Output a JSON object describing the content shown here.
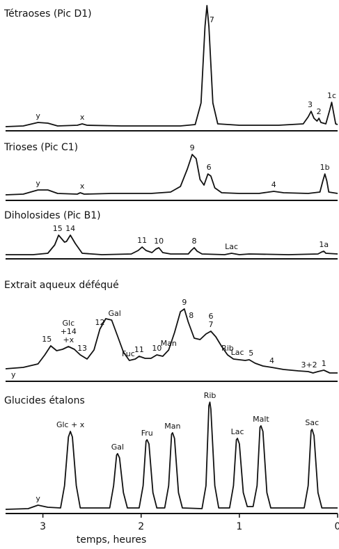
{
  "chart_data": [
    {
      "type": "line",
      "title": "Tétraoses (Pic D1)",
      "xlim": [
        3.38,
        0
      ],
      "ylim": [
        0,
        182
      ],
      "x": [
        3.38,
        3.2,
        3.05,
        2.95,
        2.85,
        2.65,
        2.6,
        2.55,
        2.2,
        1.6,
        1.45,
        1.39,
        1.35,
        1.33,
        1.31,
        1.27,
        1.22,
        1.0,
        0.6,
        0.35,
        0.3,
        0.27,
        0.24,
        0.21,
        0.19,
        0.17,
        0.12,
        0.08,
        0.06,
        0.04,
        0.02,
        0
      ],
      "values": [
        6,
        7,
        12,
        11,
        7,
        8,
        10,
        8,
        7,
        7,
        9,
        40,
        150,
        180,
        150,
        40,
        10,
        8,
        8,
        10,
        20,
        28,
        18,
        14,
        18,
        12,
        10,
        30,
        41,
        25,
        10,
        9
      ],
      "color": "#111111",
      "annotations": [
        {
          "text": "y",
          "x": 3.05
        },
        {
          "text": "x",
          "x": 2.6
        },
        {
          "text": "7",
          "x": 1.28
        },
        {
          "text": "3",
          "x": 0.28
        },
        {
          "text": "2",
          "x": 0.19
        },
        {
          "text": "1c",
          "x": 0.06
        }
      ]
    },
    {
      "type": "line",
      "title": "Trioses (Pic C1)",
      "xlim": [
        3.38,
        0
      ],
      "ylim": [
        0,
        80
      ],
      "x": [
        3.38,
        3.2,
        3.05,
        2.95,
        2.85,
        2.65,
        2.62,
        2.58,
        2.3,
        1.9,
        1.7,
        1.6,
        1.53,
        1.48,
        1.44,
        1.4,
        1.36,
        1.32,
        1.29,
        1.25,
        1.18,
        1.0,
        0.8,
        0.7,
        0.65,
        0.55,
        0.3,
        0.18,
        0.15,
        0.13,
        0.11,
        0.09,
        0
      ],
      "values": [
        8,
        9,
        15,
        15,
        10,
        9,
        11,
        9,
        10,
        10,
        12,
        20,
        45,
        66,
        60,
        30,
        22,
        38,
        35,
        18,
        11,
        10,
        10,
        12,
        13,
        11,
        10,
        12,
        28,
        38,
        28,
        12,
        10
      ],
      "color": "#111111",
      "annotations": [
        {
          "text": "y",
          "x": 3.05
        },
        {
          "text": "x",
          "x": 2.6
        },
        {
          "text": "9",
          "x": 1.48
        },
        {
          "text": "6",
          "x": 1.31
        },
        {
          "text": "4",
          "x": 0.65
        },
        {
          "text": "1b",
          "x": 0.13
        }
      ]
    },
    {
      "type": "line",
      "title": "Diholosides (Pic B1)",
      "xlim": [
        3.38,
        0
      ],
      "ylim": [
        0,
        60
      ],
      "x": [
        3.38,
        3.1,
        2.95,
        2.88,
        2.84,
        2.78,
        2.76,
        2.72,
        2.67,
        2.6,
        2.4,
        2.1,
        2.03,
        1.99,
        1.95,
        1.89,
        1.85,
        1.82,
        1.78,
        1.7,
        1.52,
        1.49,
        1.46,
        1.43,
        1.38,
        1.15,
        1.08,
        1.0,
        0.9,
        0.5,
        0.2,
        0.16,
        0.14,
        0.12,
        0
      ],
      "values": [
        6,
        6,
        8,
        20,
        34,
        24,
        25,
        34,
        22,
        8,
        6,
        7,
        12,
        17,
        12,
        9,
        14,
        16,
        9,
        7,
        7,
        12,
        16,
        11,
        7,
        6,
        8,
        6,
        7,
        6,
        7,
        10,
        11,
        8,
        7
      ],
      "color": "#111111",
      "annotations": [
        {
          "text": "15",
          "x": 2.85
        },
        {
          "text": "14",
          "x": 2.72
        },
        {
          "text": "11",
          "x": 1.99
        },
        {
          "text": "10",
          "x": 1.82
        },
        {
          "text": "8",
          "x": 1.46
        },
        {
          "text": "Lac",
          "x": 1.08
        },
        {
          "text": "1a",
          "x": 0.14
        }
      ]
    },
    {
      "type": "line",
      "title": "Extrait aqueux déféqué",
      "xlim": [
        3.38,
        0
      ],
      "ylim": [
        0,
        130
      ],
      "x": [
        3.38,
        3.2,
        3.05,
        2.98,
        2.92,
        2.86,
        2.8,
        2.74,
        2.68,
        2.62,
        2.55,
        2.48,
        2.42,
        2.36,
        2.3,
        2.24,
        2.18,
        2.12,
        2.06,
        2.02,
        1.96,
        1.9,
        1.84,
        1.78,
        1.72,
        1.66,
        1.6,
        1.56,
        1.52,
        1.46,
        1.4,
        1.34,
        1.29,
        1.24,
        1.18,
        1.12,
        1.06,
        1.0,
        0.94,
        0.9,
        0.84,
        0.76,
        0.67,
        0.55,
        0.4,
        0.3,
        0.25,
        0.2,
        0.14,
        0.08,
        0
      ],
      "values": [
        18,
        20,
        25,
        38,
        51,
        44,
        46,
        50,
        46,
        38,
        32,
        45,
        75,
        90,
        88,
        65,
        42,
        30,
        32,
        36,
        33,
        33,
        38,
        36,
        45,
        70,
        100,
        104,
        85,
        62,
        60,
        68,
        72,
        64,
        50,
        38,
        32,
        31,
        30,
        31,
        26,
        22,
        20,
        17,
        15,
        14,
        12,
        14,
        16,
        12,
        12
      ],
      "color": "#111111",
      "annotations": [
        {
          "text": "y",
          "x": 3.3
        },
        {
          "text": "15",
          "x": 2.96
        },
        {
          "text": "Glc",
          "x": 2.74
        },
        {
          "text": "+14",
          "x": 2.74
        },
        {
          "text": "+x",
          "x": 2.74
        },
        {
          "text": "13",
          "x": 2.6
        },
        {
          "text": "12",
          "x": 2.42
        },
        {
          "text": "Gal",
          "x": 2.27
        },
        {
          "text": "Fuc",
          "x": 2.13
        },
        {
          "text": "11",
          "x": 2.02
        },
        {
          "text": "10",
          "x": 1.84
        },
        {
          "text": "Man",
          "x": 1.72
        },
        {
          "text": "9",
          "x": 1.56
        },
        {
          "text": "8",
          "x": 1.49
        },
        {
          "text": "6",
          "x": 1.29
        },
        {
          "text": "7",
          "x": 1.29
        },
        {
          "text": "Rib",
          "x": 1.12
        },
        {
          "text": "Lac",
          "x": 1.02
        },
        {
          "text": "5",
          "x": 0.88
        },
        {
          "text": "4",
          "x": 0.67
        },
        {
          "text": "3+2",
          "x": 0.29
        },
        {
          "text": "1",
          "x": 0.14
        }
      ]
    },
    {
      "type": "line",
      "title": "Glucides étalons",
      "xlim": [
        3.38,
        0
      ],
      "ylim": [
        0,
        190
      ],
      "xticks": [
        3,
        2,
        1,
        0
      ],
      "xlabel": "temps, heures",
      "x": [
        3.38,
        3.15,
        3.05,
        2.95,
        2.82,
        2.78,
        2.74,
        2.72,
        2.7,
        2.66,
        2.62,
        2.32,
        2.28,
        2.25,
        2.24,
        2.22,
        2.18,
        2.14,
        2.02,
        1.98,
        1.95,
        1.94,
        1.92,
        1.88,
        1.84,
        1.76,
        1.72,
        1.69,
        1.68,
        1.66,
        1.62,
        1.58,
        1.38,
        1.34,
        1.31,
        1.3,
        1.29,
        1.25,
        1.21,
        1.1,
        1.06,
        1.03,
        1.02,
        1.0,
        0.96,
        0.92,
        0.86,
        0.82,
        0.79,
        0.78,
        0.76,
        0.72,
        0.68,
        0.34,
        0.3,
        0.27,
        0.26,
        0.24,
        0.2,
        0.16,
        0
      ],
      "values": [
        6,
        7,
        12,
        9,
        8,
        40,
        110,
        118,
        110,
        40,
        8,
        8,
        40,
        84,
        86,
        80,
        30,
        8,
        8,
        40,
        104,
        106,
        100,
        30,
        8,
        8,
        40,
        114,
        116,
        108,
        30,
        8,
        7,
        40,
        155,
        160,
        150,
        40,
        8,
        8,
        40,
        106,
        108,
        100,
        30,
        10,
        10,
        40,
        124,
        126,
        118,
        30,
        8,
        8,
        40,
        119,
        121,
        112,
        30,
        8,
        8
      ],
      "color": "#111111",
      "annotations": [
        {
          "text": "y",
          "x": 3.05
        },
        {
          "text": "Glc + x",
          "x": 2.72
        },
        {
          "text": "Gal",
          "x": 2.24
        },
        {
          "text": "Fru",
          "x": 1.94
        },
        {
          "text": "Man",
          "x": 1.68
        },
        {
          "text": "Rib",
          "x": 1.3
        },
        {
          "text": "Lac",
          "x": 1.02
        },
        {
          "text": "Malt",
          "x": 0.78
        },
        {
          "text": "Sac",
          "x": 0.26
        }
      ]
    }
  ]
}
